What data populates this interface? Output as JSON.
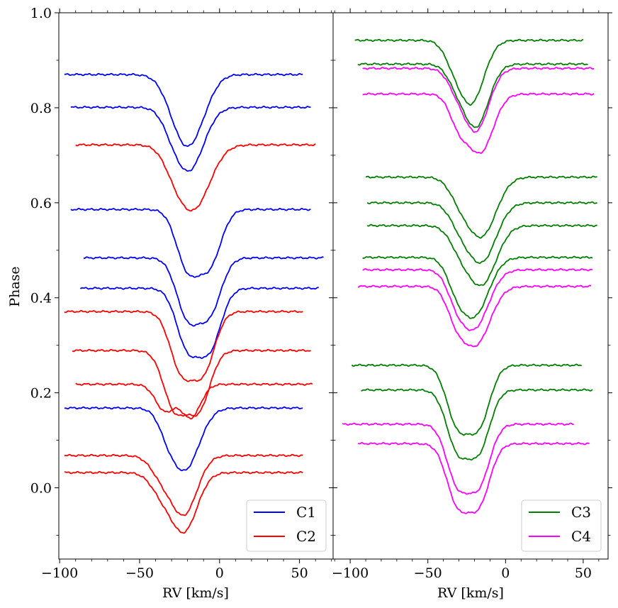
{
  "chart_data": {
    "type": "line",
    "ylabel": "Phase",
    "ylim": [
      -0.15,
      1.0
    ],
    "yticks": [
      0.0,
      0.2,
      0.4,
      0.6,
      0.8,
      1.0
    ],
    "yticklabels": [
      "0.0",
      "0.2",
      "0.4",
      "0.6",
      "0.8",
      "1.0"
    ],
    "colors": {
      "C1": "#0000ff",
      "C2": "#ff0000",
      "C3": "#008000",
      "C4": "#ff00ff"
    },
    "panels": [
      {
        "id": "left",
        "xlabel": "RV [km/s]",
        "xlim": [
          -100.5,
          71
        ],
        "xticks": [
          -100,
          -50,
          0,
          50
        ],
        "xticklabels": [
          "−100",
          "−50",
          "0",
          "50"
        ],
        "legend": [
          {
            "name": "C1",
            "color": "#0000ff"
          },
          {
            "name": "C2",
            "color": "#ff0000"
          }
        ],
        "legend_position": "lower-right",
        "series": [
          {
            "name": "C1",
            "color": "#0000ff",
            "base": 0.87,
            "xmin": -97,
            "xmax": 52,
            "components": [
              {
                "c": -22,
                "d": 0.13,
                "w": 9
              },
              {
                "c": -12,
                "d": 0.04,
                "w": 8
              }
            ]
          },
          {
            "name": "C1",
            "color": "#0000ff",
            "base": 0.801,
            "xmin": -93,
            "xmax": 57,
            "components": [
              {
                "c": -19,
                "d": 0.13,
                "w": 9
              },
              {
                "c": -30,
                "d": 0.02,
                "w": 6
              }
            ]
          },
          {
            "name": "C2",
            "color": "#ff0000",
            "base": 0.722,
            "xmin": -90,
            "xmax": 60,
            "components": [
              {
                "c": -16,
                "d": 0.13,
                "w": 10
              },
              {
                "c": -28,
                "d": 0.03,
                "w": 7
              }
            ]
          },
          {
            "name": "C1",
            "color": "#0000ff",
            "base": 0.586,
            "xmin": -93,
            "xmax": 57,
            "components": [
              {
                "c": -20,
                "d": 0.12,
                "w": 7
              },
              {
                "c": -6,
                "d": 0.11,
                "w": 7
              }
            ]
          },
          {
            "name": "C1",
            "color": "#0000ff",
            "base": 0.484,
            "xmin": -85,
            "xmax": 65,
            "components": [
              {
                "c": -20,
                "d": 0.12,
                "w": 7
              },
              {
                "c": -6,
                "d": 0.11,
                "w": 7
              }
            ]
          },
          {
            "name": "C1",
            "color": "#0000ff",
            "base": 0.42,
            "xmin": -87,
            "xmax": 62,
            "components": [
              {
                "c": -20,
                "d": 0.12,
                "w": 7
              },
              {
                "c": -6,
                "d": 0.12,
                "w": 7
              }
            ]
          },
          {
            "name": "C2",
            "color": "#ff0000",
            "base": 0.371,
            "xmin": -97,
            "xmax": 52,
            "components": [
              {
                "c": -24,
                "d": 0.12,
                "w": 7
              },
              {
                "c": -10,
                "d": 0.12,
                "w": 7
              }
            ]
          },
          {
            "name": "C2",
            "color": "#ff0000",
            "base": 0.289,
            "xmin": -92,
            "xmax": 57,
            "components": [
              {
                "c": -28,
                "d": 0.12,
                "w": 7
              },
              {
                "c": -13,
                "d": 0.12,
                "w": 7
              }
            ]
          },
          {
            "name": "C2",
            "color": "#ff0000",
            "base": 0.218,
            "xmin": -90,
            "xmax": 58,
            "components": [
              {
                "c": -34,
                "d": 0.056,
                "w": 6
              },
              {
                "c": -18,
                "d": 0.07,
                "w": 6
              }
            ]
          },
          {
            "name": "C1",
            "color": "#0000ff",
            "base": 0.168,
            "xmin": -97,
            "xmax": 52,
            "components": [
              {
                "c": -22,
                "d": 0.13,
                "w": 9
              },
              {
                "c": -33,
                "d": 0.02,
                "w": 5
              }
            ]
          },
          {
            "name": "C2",
            "color": "#ff0000",
            "base": 0.068,
            "xmin": -97,
            "xmax": 52,
            "components": [
              {
                "c": -22,
                "d": 0.12,
                "w": 8
              },
              {
                "c": -36,
                "d": 0.04,
                "w": 7
              }
            ]
          },
          {
            "name": "C2",
            "color": "#ff0000",
            "base": 0.032,
            "xmin": -97,
            "xmax": 52,
            "components": [
              {
                "c": -22,
                "d": 0.12,
                "w": 8
              },
              {
                "c": -36,
                "d": 0.04,
                "w": 7
              }
            ]
          }
        ]
      },
      {
        "id": "right",
        "xlabel": "RV [km/s]",
        "xlim": [
          -111,
          66
        ],
        "xticks": [
          -100,
          -50,
          0,
          50
        ],
        "xticklabels": [
          "−100",
          "−50",
          "0",
          "50"
        ],
        "legend": [
          {
            "name": "C3",
            "color": "#008000"
          },
          {
            "name": "C4",
            "color": "#ff00ff"
          }
        ],
        "legend_position": "lower-right",
        "series": [
          {
            "name": "C3",
            "color": "#008000",
            "base": 0.942,
            "xmin": -97,
            "xmax": 50,
            "components": [
              {
                "c": -22,
                "d": 0.13,
                "w": 8
              },
              {
                "c": -34,
                "d": 0.03,
                "w": 6
              }
            ]
          },
          {
            "name": "C3",
            "color": "#008000",
            "base": 0.892,
            "xmin": -95,
            "xmax": 53,
            "components": [
              {
                "c": -19,
                "d": 0.13,
                "w": 8
              },
              {
                "c": -32,
                "d": 0.03,
                "w": 6
              }
            ]
          },
          {
            "name": "C4",
            "color": "#ff00ff",
            "base": 0.883,
            "xmin": -92,
            "xmax": 57,
            "components": [
              {
                "c": -19,
                "d": 0.13,
                "w": 8
              },
              {
                "c": -32,
                "d": 0.03,
                "w": 6
              }
            ]
          },
          {
            "name": "C4",
            "color": "#ff00ff",
            "base": 0.829,
            "xmin": -92,
            "xmax": 57,
            "components": [
              {
                "c": -16,
                "d": 0.12,
                "w": 8
              },
              {
                "c": -30,
                "d": 0.06,
                "w": 6
              }
            ]
          },
          {
            "name": "C3",
            "color": "#008000",
            "base": 0.654,
            "xmin": -90,
            "xmax": 59,
            "components": [
              {
                "c": -15,
                "d": 0.12,
                "w": 9
              },
              {
                "c": -29,
                "d": 0.04,
                "w": 7
              }
            ]
          },
          {
            "name": "C3",
            "color": "#008000",
            "base": 0.6,
            "xmin": -89,
            "xmax": 59,
            "components": [
              {
                "c": -15,
                "d": 0.12,
                "w": 9
              },
              {
                "c": -29,
                "d": 0.04,
                "w": 7
              }
            ]
          },
          {
            "name": "C3",
            "color": "#008000",
            "base": 0.552,
            "xmin": -89,
            "xmax": 59,
            "components": [
              {
                "c": -15,
                "d": 0.12,
                "w": 9
              },
              {
                "c": -29,
                "d": 0.04,
                "w": 7
              }
            ]
          },
          {
            "name": "C3",
            "color": "#008000",
            "base": 0.485,
            "xmin": -92,
            "xmax": 56,
            "components": [
              {
                "c": -20,
                "d": 0.12,
                "w": 9
              },
              {
                "c": -32,
                "d": 0.04,
                "w": 6
              }
            ]
          },
          {
            "name": "C4",
            "color": "#ff00ff",
            "base": 0.459,
            "xmin": -92,
            "xmax": 56,
            "components": [
              {
                "c": -20,
                "d": 0.12,
                "w": 9
              },
              {
                "c": -32,
                "d": 0.04,
                "w": 6
              }
            ]
          },
          {
            "name": "C4",
            "color": "#ff00ff",
            "base": 0.424,
            "xmin": -95,
            "xmax": 55,
            "components": [
              {
                "c": -19,
                "d": 0.12,
                "w": 9
              },
              {
                "c": -32,
                "d": 0.05,
                "w": 6
              }
            ]
          },
          {
            "name": "C3",
            "color": "#008000",
            "base": 0.258,
            "xmin": -99,
            "xmax": 49,
            "components": [
              {
                "c": -31,
                "d": 0.12,
                "w": 7
              },
              {
                "c": -17,
                "d": 0.12,
                "w": 7
              }
            ]
          },
          {
            "name": "C3",
            "color": "#008000",
            "base": 0.206,
            "xmin": -93,
            "xmax": 56,
            "components": [
              {
                "c": -31,
                "d": 0.12,
                "w": 7
              },
              {
                "c": -17,
                "d": 0.12,
                "w": 7
              }
            ]
          },
          {
            "name": "C4",
            "color": "#ff00ff",
            "base": 0.134,
            "xmin": -105,
            "xmax": 44,
            "components": [
              {
                "c": -31,
                "d": 0.12,
                "w": 7
              },
              {
                "c": -17,
                "d": 0.12,
                "w": 7
              }
            ]
          },
          {
            "name": "C4",
            "color": "#ff00ff",
            "base": 0.093,
            "xmin": -95,
            "xmax": 54,
            "components": [
              {
                "c": -31,
                "d": 0.12,
                "w": 7
              },
              {
                "c": -17,
                "d": 0.12,
                "w": 7
              }
            ]
          }
        ]
      }
    ]
  }
}
